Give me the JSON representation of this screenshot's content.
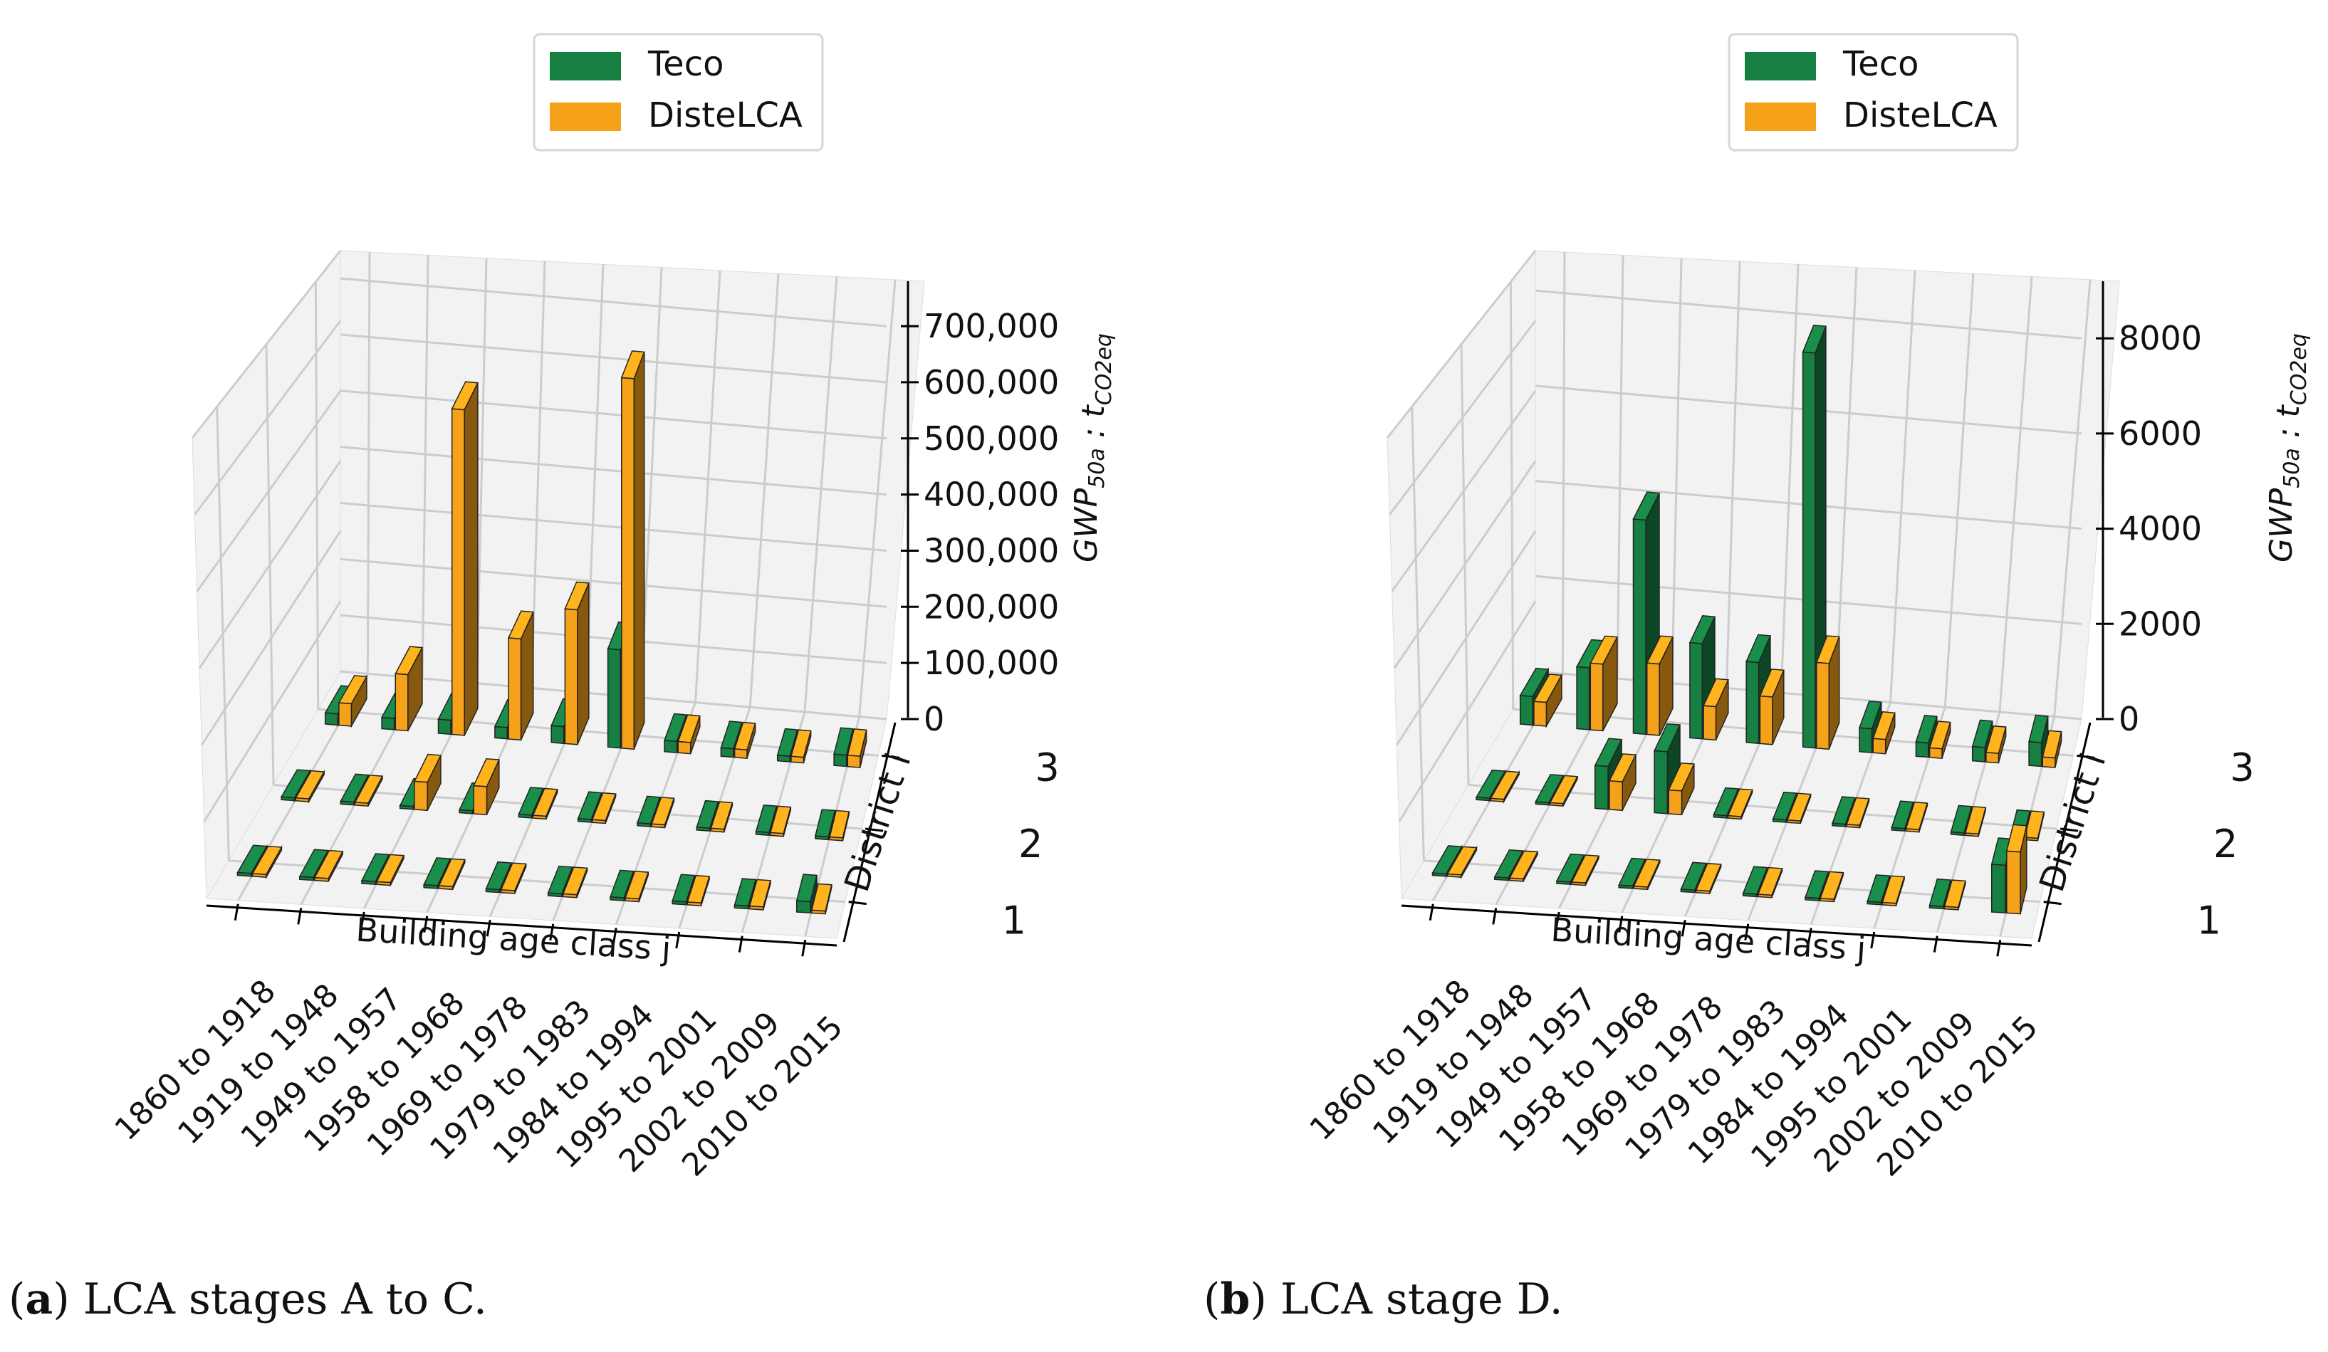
{
  "colors": {
    "teco": "#168043",
    "distelca": "#f6a11a"
  },
  "legend": {
    "teco": "Teco",
    "distelca": "DisteLCA"
  },
  "captions": [
    {
      "label": "a",
      "text": ") LCA stages A to C."
    },
    {
      "label": "b",
      "text": ") LCA stage D."
    }
  ],
  "chart_data": [
    {
      "type": "bar3d",
      "panel": "a",
      "xlabel": "Building age class j",
      "ylabel": "District i",
      "zlabel": "GWP50a : tCO2eq",
      "zlabel_base": "GWP",
      "zlabel_sub": "50a",
      "zlabel_t": "t",
      "zlabel_tsub": "CO2eq",
      "categories": [
        "1860 to 1918",
        "1919 to 1948",
        "1949 to 1957",
        "1958 to 1968",
        "1969 to 1978",
        "1979 to 1983",
        "1984 to 1994",
        "1995 to 2001",
        "2002 to 2009",
        "2010 to 2015"
      ],
      "districts": [
        "1",
        "2",
        "3"
      ],
      "zlim": [
        0,
        780000
      ],
      "zticks": [
        0,
        100000,
        200000,
        300000,
        400000,
        500000,
        600000,
        700000
      ],
      "zticklabels": [
        "0",
        "100,000",
        "200,000",
        "300,000",
        "400,000",
        "500,000",
        "600,000",
        "700,000"
      ],
      "legend_position": "top-center",
      "series": [
        {
          "name": "Teco",
          "values": [
            [
              5000,
              5000,
              5000,
              5000,
              5000,
              5000,
              5000,
              5000,
              5000,
              20000
            ],
            [
              5000,
              5000,
              5000,
              5000,
              5000,
              5000,
              5000,
              5000,
              5000,
              5000
            ],
            [
              20000,
              20000,
              25000,
              20000,
              30000,
              175000,
              20000,
              15000,
              10000,
              20000
            ]
          ]
        },
        {
          "name": "DisteLCA",
          "values": [
            [
              5000,
              5000,
              5000,
              5000,
              5000,
              5000,
              5000,
              5000,
              5000,
              5000
            ],
            [
              5000,
              5000,
              50000,
              50000,
              5000,
              5000,
              5000,
              5000,
              5000,
              5000
            ],
            [
              40000,
              100000,
              580000,
              180000,
              240000,
              660000,
              20000,
              15000,
              10000,
              20000
            ]
          ]
        }
      ]
    },
    {
      "type": "bar3d",
      "panel": "b",
      "xlabel": "Building age class j",
      "ylabel": "District i",
      "zlabel": "GWP50a : tCO2eq",
      "zlabel_base": "GWP",
      "zlabel_sub": "50a",
      "zlabel_t": "t",
      "zlabel_tsub": "CO2eq",
      "categories": [
        "1860 to 1918",
        "1919 to 1948",
        "1949 to 1957",
        "1958 to 1968",
        "1969 to 1978",
        "1979 to 1983",
        "1984 to 1994",
        "1995 to 2001",
        "2002 to 2009",
        "2010 to 2015"
      ],
      "districts": [
        "1",
        "2",
        "3"
      ],
      "zlim": [
        0,
        9200
      ],
      "zticks": [
        0,
        2000,
        4000,
        6000,
        8000
      ],
      "zticklabels": [
        "0",
        "2000",
        "4000",
        "6000",
        "8000"
      ],
      "legend_position": "top-center",
      "series": [
        {
          "name": "Teco",
          "values": [
            [
              50,
              50,
              50,
              50,
              50,
              50,
              50,
              50,
              50,
              1000
            ],
            [
              50,
              50,
              900,
              1300,
              50,
              50,
              50,
              50,
              50,
              50
            ],
            [
              600,
              1300,
              4500,
              2000,
              1700,
              8300,
              500,
              300,
              300,
              500
            ]
          ]
        },
        {
          "name": "DisteLCA",
          "values": [
            [
              50,
              50,
              50,
              50,
              50,
              50,
              50,
              50,
              50,
              1300
            ],
            [
              50,
              50,
              600,
              500,
              50,
              50,
              50,
              50,
              50,
              50
            ],
            [
              500,
              1400,
              1500,
              700,
              1000,
              1800,
              300,
              200,
              200,
              200
            ]
          ]
        }
      ]
    }
  ]
}
